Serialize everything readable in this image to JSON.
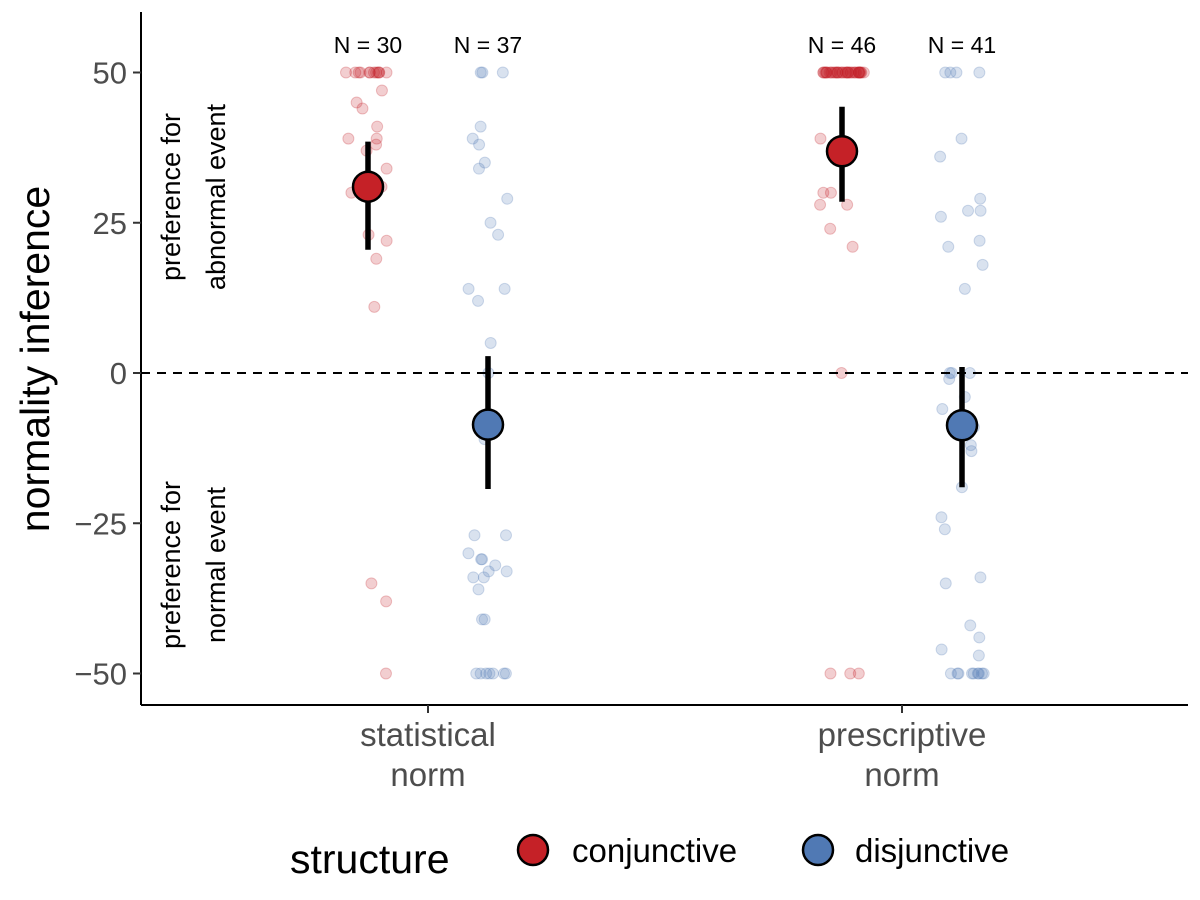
{
  "chart_data": {
    "type": "scatter",
    "xlabel": "",
    "ylabel": "normality inference",
    "ylim": [
      -55,
      60
    ],
    "yticks": [
      50,
      25,
      0,
      -25,
      -50
    ],
    "ytick_labels": [
      "50",
      "25",
      "0",
      "−25",
      "−50"
    ],
    "categories": [
      [
        "statistical",
        "norm"
      ],
      [
        "prescriptive",
        "norm"
      ]
    ],
    "reference_line": {
      "y": 0,
      "style": "dashed"
    },
    "annotations": {
      "upper": [
        "preference for",
        "abnormal event"
      ],
      "lower": [
        "preference for",
        "normal event"
      ]
    },
    "legend": {
      "title": "structure",
      "position": "bottom",
      "entries": [
        {
          "label": "conjunctive",
          "color": "#C52127"
        },
        {
          "label": "disjunctive",
          "color": "#5079B4"
        }
      ]
    },
    "groups": [
      {
        "category": 0,
        "series": "conjunctive",
        "n_label": "N = 30",
        "mean": 31,
        "ci": [
          20.5,
          38.5
        ],
        "points": [
          50,
          50,
          50,
          50,
          50,
          50,
          50,
          50,
          50,
          50,
          50,
          50,
          47,
          45,
          44,
          41,
          39,
          39,
          38,
          37,
          34,
          31,
          30,
          23,
          22,
          19,
          11,
          -35,
          -38,
          -50
        ]
      },
      {
        "category": 0,
        "series": "disjunctive",
        "n_label": "N = 37",
        "mean": -8.6,
        "ci": [
          -19.3,
          2.8
        ],
        "points": [
          50,
          50,
          50,
          41,
          39,
          38,
          35,
          34,
          29,
          25,
          23,
          14,
          14,
          12,
          5,
          0,
          -11,
          -27,
          -27,
          -30,
          -31,
          -31,
          -32,
          -33,
          -33,
          -34,
          -34,
          -36,
          -41,
          -41,
          -50,
          -50,
          -50,
          -50,
          -50,
          -50,
          -50
        ]
      },
      {
        "category": 1,
        "series": "conjunctive",
        "n_label": "N = 46",
        "mean": 36.9,
        "ci": [
          28.5,
          44.3
        ],
        "points": [
          50,
          50,
          50,
          50,
          50,
          50,
          50,
          50,
          50,
          50,
          50,
          50,
          50,
          50,
          50,
          50,
          50,
          50,
          50,
          50,
          50,
          50,
          50,
          50,
          50,
          50,
          50,
          50,
          50,
          50,
          50,
          50,
          50,
          50,
          50,
          39,
          30,
          30,
          28,
          28,
          24,
          21,
          0,
          -50,
          -50,
          -50
        ]
      },
      {
        "category": 1,
        "series": "disjunctive",
        "n_label": "N = 41",
        "mean": -8.7,
        "ci": [
          -19,
          1
        ],
        "points": [
          50,
          50,
          50,
          50,
          39,
          36,
          29,
          27,
          27,
          26,
          22,
          21,
          18,
          14,
          0,
          0,
          0,
          -1,
          -4,
          -6,
          -9,
          -12,
          -13,
          -19,
          -24,
          -26,
          -34,
          -35,
          -42,
          -44,
          -46,
          -47,
          -50,
          -50,
          -50,
          -50,
          -50,
          -50,
          -50,
          -50,
          -50
        ]
      }
    ]
  }
}
